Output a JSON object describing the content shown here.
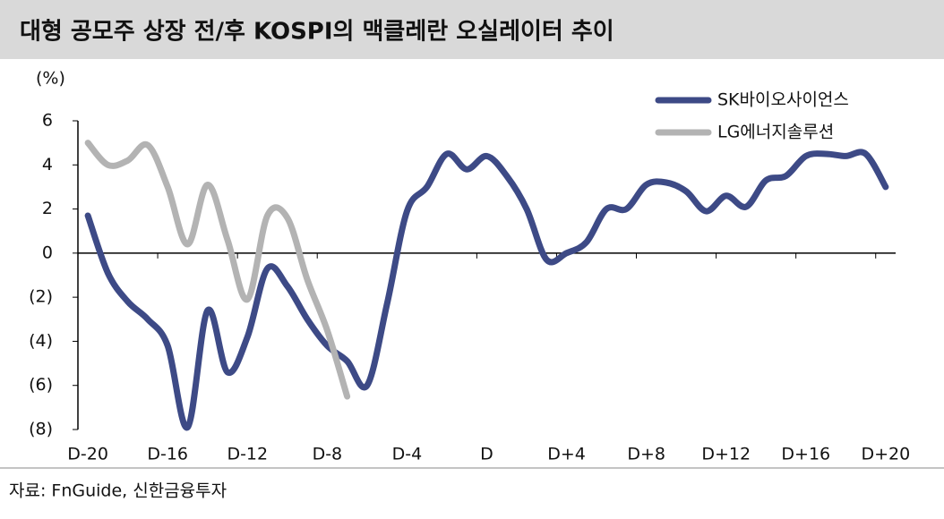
{
  "chart_data": {
    "type": "line",
    "title": "대형 공모주 상장 전/후 KOSPI의 맥클레란 오실레이터 추이",
    "y_label": "(%)",
    "source": "자료: FnGuide, 신한금융투자",
    "categories": [
      "D-20",
      null,
      null,
      null,
      "D-16",
      null,
      null,
      null,
      "D-12",
      null,
      null,
      null,
      "D-8",
      null,
      null,
      null,
      "D-4",
      null,
      null,
      null,
      "D",
      null,
      null,
      null,
      "D+4",
      null,
      null,
      null,
      "D+8",
      null,
      null,
      null,
      "D+12",
      null,
      null,
      null,
      "D+16",
      null,
      null,
      null,
      "D+20"
    ],
    "series": [
      {
        "name": "SK바이오사이언스",
        "color": "#3d4a86",
        "values": [
          1.7,
          -0.9,
          -2.2,
          -3.0,
          -4.2,
          -7.9,
          -2.6,
          -5.4,
          -3.8,
          -0.7,
          -1.5,
          -3.0,
          -4.2,
          -4.9,
          -6.0,
          -2.3,
          1.9,
          3.0,
          4.5,
          3.8,
          4.4,
          3.5,
          2.0,
          -0.3,
          0.0,
          0.5,
          2.0,
          2.0,
          3.1,
          3.2,
          2.8,
          1.9,
          2.6,
          2.1,
          3.3,
          3.5,
          4.4,
          4.5,
          4.4,
          4.5,
          3.0
        ]
      },
      {
        "name": "LG에너지솔루션",
        "color": "#b3b3b3",
        "values": [
          5.0,
          4.0,
          4.2,
          4.9,
          3.0,
          0.4,
          3.1,
          0.6,
          -2.1,
          1.7,
          1.6,
          -1.2,
          -3.5,
          -6.5,
          null,
          null,
          null,
          null,
          null,
          null,
          null,
          null,
          null,
          null,
          null,
          null,
          null,
          null,
          null,
          null,
          null,
          null,
          null,
          null,
          null,
          null,
          null,
          null,
          null,
          null,
          null
        ]
      }
    ],
    "ylim": [
      -8,
      6
    ],
    "yticks": [
      6,
      4,
      2,
      0,
      {
        "value": -2,
        "label": "(2)"
      },
      {
        "value": -4,
        "label": "(4)"
      },
      {
        "value": -6,
        "label": "(6)"
      },
      {
        "value": -8,
        "label": "(8)"
      }
    ],
    "legend": "upper right"
  }
}
